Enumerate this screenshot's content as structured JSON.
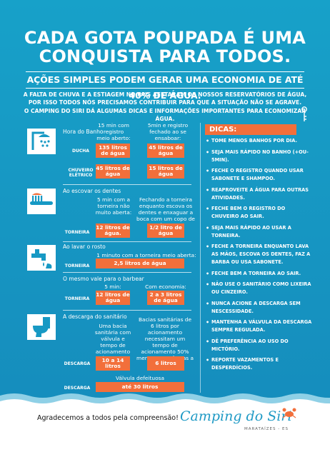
{
  "title": {
    "line1": "CADA GOTA POUPADA É UMA",
    "line2": "CONQUISTA PARA TODOS."
  },
  "subtitle": "AÇÕES SIMPLES PODEM GERAR UMA ECONOMIA DE ATÉ 40% DE ÁGUA.",
  "intro": [
    "A FALTA DE CHUVA E A ESTIAGEM NO PAIS AFETARAM OS NOSSOS RESERVATÓRIOS DE ÁGUA,",
    "POR ISSO TODOS NÓS PRECISAMOS CONTRIBUIR PARA QUE A SITUAÇÃO NÃO SE AGRAVE.",
    "O CAMPING DO SIRI DÁ ALGUMAS DICAS E INFORMAÇÕES IMPORTANTES PARA ECONOMIZAR ÁGUA."
  ],
  "banho": {
    "section": "Hora do Banho",
    "col1": "15 min com registro meio aberto:",
    "col2": "5min e registro fechado ao se ensaboar:",
    "rows": [
      {
        "label": "DUCHA",
        "a": "135 litros de água",
        "b": "45 litros de água"
      },
      {
        "label": "CHUVEIRO ELÉTRICO",
        "a": "45 litros de água",
        "b": "15 litros de água"
      }
    ]
  },
  "dentes": {
    "section": "Ao escovar os dentes",
    "col1": "5 min com a torneira não muito aberta:",
    "col2": "Fechando a torneira enquanto escova os dentes e enxaguar a boca com um copo de água",
    "row": {
      "label": "TORNEIRA",
      "a": "12 litros de água.",
      "b": "1/2 litro de água"
    }
  },
  "rosto": {
    "section": "Ao lavar o rosto",
    "note": "1 minuto com a torneira meio aberta:",
    "row": {
      "label": "TORNEIRA",
      "a": "2,5 litros de água"
    }
  },
  "barba": {
    "section": "O mesmo vale para o barbear",
    "col1": "5 min:",
    "col2": "Com economia:",
    "row": {
      "label": "TORNEIRA",
      "a": "12 litros de água",
      "b": "2 a 3 litros de água"
    }
  },
  "sanitario": {
    "section": "A descarga do sanitário",
    "col1": "Uma bacia sanitária com válvula e tempo de acionamento de 6 seg.",
    "col2": "Bacias sanitárias de 6 litros por acionamento necessitam um tempo de acionamento 50% menor para efetuas a limpeza.",
    "row": {
      "label": "DESCARGA",
      "a": "10 a 14 litros",
      "b": "6 litros"
    },
    "note2": "Válvula defeituosa",
    "row2": {
      "label": "DESCARGA",
      "a": "até 30 litros"
    }
  },
  "dicas": {
    "title": "DICAS:",
    "items": [
      "TOME MENOS BANHOS POR DIA.",
      "SEJA MAIS RÁPIDO NO BANHO (+OU- 5MIN).",
      "FECHE O REGISTRO QUANDO USAR SABONETE E SHAMPOO.",
      "REAPROVEITE A ÁGUA PARA OUTRAS ATIVIDADES.",
      "FECHE BEM O REGISTRO DO CHUVEIRO AO SAIR.",
      "SEJA MAIS RÁPIDO AO USAR A TORNEIRA.",
      "FECHE A TORNEIRA ENQUANTO LAVA AS MÃOS, ESCOVA OS DENTES, FAZ A BARBA OU USA SABONETE.",
      "FECHE BEM A TORNEIRA AO SAIR.",
      "NÃO USE O SANITÁRIO COMO LIXEIRA OU CINZEIRO.",
      "NUNCA ACIONE A DESCARGA SEM NESCESSIDADE.",
      "MANTENHA A VÁLVULA DA DESCARGA SEMPRE REGULADA.",
      "DÊ PREFERÊNCIA AO USO DO MICTÓRIO.",
      "REPORTE VAZAMENTOS E DESPERDÍCIOS."
    ]
  },
  "footer": {
    "thanks": "Agradecemos a todos pela compreensão!",
    "logo": "Camping do Siri",
    "logo_sub": "MARATAÍZES - ES"
  },
  "colors": {
    "teal": "#1799c4",
    "orange": "#f26f3b"
  }
}
